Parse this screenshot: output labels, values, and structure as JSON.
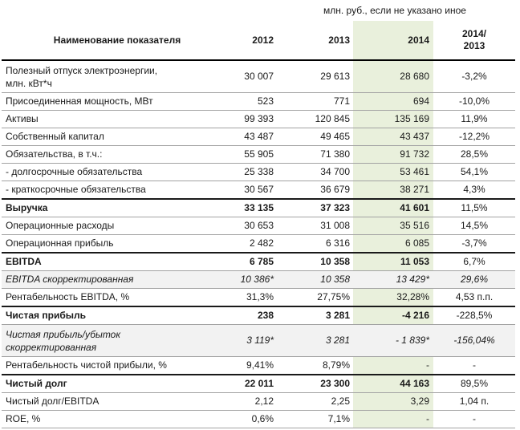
{
  "unit_note": "млн. руб., если не указано иное",
  "colors": {
    "highlight_column": "#e9f0dc",
    "adjusted_row": "#f2f2f2",
    "text": "#1a1a1a",
    "thin_border": "#a3a3a3",
    "thick_border": "#000000"
  },
  "table": {
    "header": {
      "name": "Наименование показателя",
      "y2012": "2012",
      "y2013": "2013",
      "y2014": "2014",
      "change_line1": "2014/",
      "change_line2": "2013"
    },
    "rows": [
      {
        "label": "Полезный отпуск электроэнергии, млн. кВт*ч",
        "y2012": "30 007",
        "y2013": "29 613",
        "y2014": "28 680",
        "chg": "-3,2%"
      },
      {
        "label": "Присоединенная  мощность, МВт",
        "y2012": "523",
        "y2013": "771",
        "y2014": "694",
        "chg": "-10,0%"
      },
      {
        "label": "Активы",
        "y2012": "99 393",
        "y2013": "120 845",
        "y2014": "135 169",
        "chg": "11,9%"
      },
      {
        "label": "Собственный капитал",
        "y2012": "43 487",
        "y2013": "49 465",
        "y2014": "43 437",
        "chg": "-12,2%"
      },
      {
        "label": "Обязательства, в т.ч.:",
        "y2012": "55 905",
        "y2013": "71 380",
        "y2014": "91 732",
        "chg": "28,5%"
      },
      {
        "label": "- долгосрочные обязательства",
        "y2012": "25 338",
        "y2013": "34 700",
        "y2014": "53 461",
        "chg": "54,1%"
      },
      {
        "label": "- краткосрочные обязательства",
        "y2012": "30 567",
        "y2013": "36 679",
        "y2014": "38 271",
        "chg": "4,3%"
      },
      {
        "label": "Выручка",
        "y2012": "33 135",
        "y2013": "37 323",
        "y2014": "41 601",
        "chg": "11,5%"
      },
      {
        "label": "Операционные расходы",
        "y2012": "30 653",
        "y2013": "31 008",
        "y2014": "35 516",
        "chg": "14,5%"
      },
      {
        "label": "Операционная прибыль",
        "y2012": "2 482",
        "y2013": "6 316",
        "y2014": "6 085",
        "chg": "-3,7%"
      },
      {
        "label": "EBITDA",
        "y2012": "6 785",
        "y2013": "10 358",
        "y2014": "11 053",
        "chg": "6,7%"
      },
      {
        "label": "EBITDA скорректированная",
        "y2012": "10 386*",
        "y2013": "10 358",
        "y2014": "13 429*",
        "chg": "29,6%"
      },
      {
        "label": "Рентабельность EBITDA, %",
        "y2012": "31,3%",
        "y2013": "27,75%",
        "y2014": "32,28%",
        "chg": "4,53 п.п."
      },
      {
        "label": "Чистая прибыль",
        "y2012": "238",
        "y2013": "3 281",
        "y2014": "-4 216",
        "chg": "-228,5%"
      },
      {
        "label": "Чистая прибыль/убыток скорректированная",
        "y2012": "3 119*",
        "y2013": "3 281",
        "y2014": "- 1 839*",
        "chg": "-156,04%"
      },
      {
        "label": "Рентабельность чистой прибыли, %",
        "y2012": "9,41%",
        "y2013": "8,79%",
        "y2014": "-",
        "chg": "-"
      },
      {
        "label": "Чистый долг",
        "y2012": "22 011",
        "y2013": "23 300",
        "y2014": "44 163",
        "chg": "89,5%"
      },
      {
        "label": "Чистый долг/EBITDA",
        "y2012": "2,12",
        "y2013": "2,25",
        "y2014": "3,29",
        "chg": "1,04 п."
      },
      {
        "label": "ROE, %",
        "y2012": "0,6%",
        "y2013": "7,1%",
        "y2014": "-",
        "chg": "-"
      }
    ]
  }
}
